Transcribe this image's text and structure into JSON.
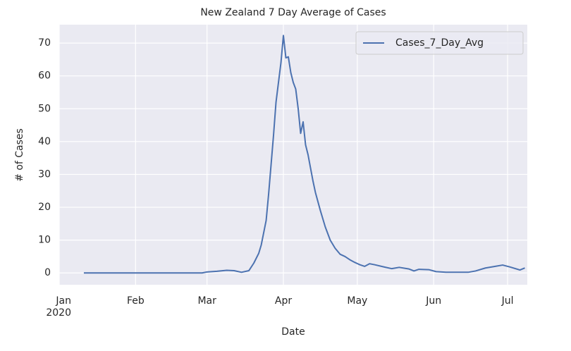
{
  "chart_data": {
    "type": "line",
    "title": "New Zealand 7 Day Average of Cases",
    "xlabel": "Date",
    "ylabel": "# of Cases",
    "x": [
      "2020-01-11",
      "2020-01-20",
      "2020-02-01",
      "2020-02-15",
      "2020-02-28",
      "2020-03-01",
      "2020-03-05",
      "2020-03-09",
      "2020-03-12",
      "2020-03-15",
      "2020-03-18",
      "2020-03-20",
      "2020-03-22",
      "2020-03-23",
      "2020-03-25",
      "2020-03-26",
      "2020-03-27",
      "2020-03-28",
      "2020-03-29",
      "2020-03-30",
      "2020-03-31",
      "2020-04-01",
      "2020-04-02",
      "2020-04-03",
      "2020-04-04",
      "2020-04-05",
      "2020-04-06",
      "2020-04-07",
      "2020-04-08",
      "2020-04-09",
      "2020-04-10",
      "2020-04-11",
      "2020-04-12",
      "2020-04-13",
      "2020-04-14",
      "2020-04-16",
      "2020-04-18",
      "2020-04-20",
      "2020-04-22",
      "2020-04-24",
      "2020-04-26",
      "2020-04-28",
      "2020-04-30",
      "2020-05-02",
      "2020-05-04",
      "2020-05-06",
      "2020-05-08",
      "2020-05-12",
      "2020-05-15",
      "2020-05-18",
      "2020-05-22",
      "2020-05-24",
      "2020-05-26",
      "2020-05-30",
      "2020-06-02",
      "2020-06-06",
      "2020-06-15",
      "2020-06-18",
      "2020-06-22",
      "2020-06-26",
      "2020-06-29",
      "2020-07-02",
      "2020-07-06",
      "2020-07-08"
    ],
    "series": [
      {
        "name": "Cases_7_Day_Avg",
        "color": "#4c72b0",
        "values": [
          0,
          0,
          0,
          0,
          0,
          0.3,
          0.5,
          0.8,
          0.7,
          0.2,
          0.7,
          3,
          6,
          8.5,
          16,
          24,
          33,
          42,
          52,
          58,
          64,
          72.3,
          65.5,
          65.8,
          61,
          58,
          56,
          50,
          42.5,
          46,
          39,
          36,
          32,
          28,
          24.5,
          19,
          14,
          10,
          7.5,
          5.7,
          5,
          4,
          3.2,
          2.5,
          2,
          2.8,
          2.5,
          1.8,
          1.3,
          1.7,
          1.2,
          0.6,
          1.1,
          1,
          0.4,
          0.2,
          0.2,
          0.6,
          1.5,
          2,
          2.4,
          1.8,
          0.9,
          1.5
        ]
      }
    ],
    "xlim": [
      "2020-01-01",
      "2020-07-09"
    ],
    "xticks": [
      {
        "value": "2020-01-01",
        "label": "Jan\n2020"
      },
      {
        "value": "2020-02-01",
        "label": "Feb"
      },
      {
        "value": "2020-03-01",
        "label": "Mar"
      },
      {
        "value": "2020-04-01",
        "label": "Apr"
      },
      {
        "value": "2020-05-01",
        "label": "May"
      },
      {
        "value": "2020-06-01",
        "label": "Jun"
      },
      {
        "value": "2020-07-01",
        "label": "Jul"
      }
    ],
    "ylim": [
      -3.6,
      75.6
    ],
    "yticks": [
      0,
      10,
      20,
      30,
      40,
      50,
      60,
      70
    ],
    "grid": true,
    "legend": "upper right"
  }
}
